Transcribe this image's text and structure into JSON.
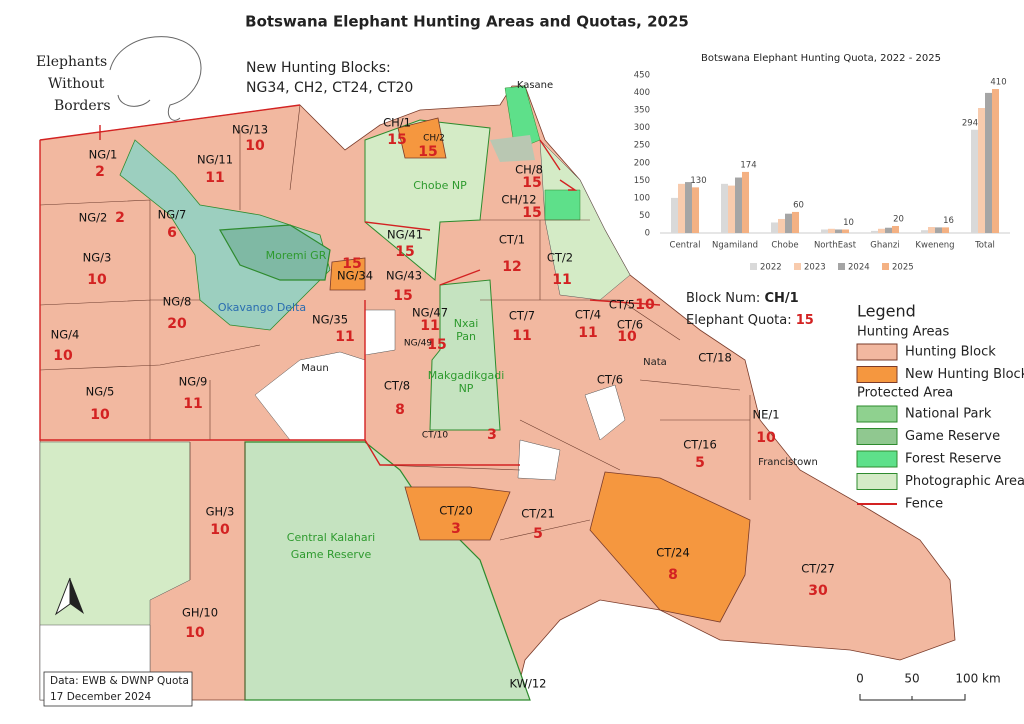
{
  "title": "Botswana Elephant Hunting Areas and Quotas, 2025",
  "logo": [
    "Elephants",
    "Without",
    "Borders"
  ],
  "new_blocks": {
    "heading": "New Hunting Blocks:",
    "list": "NG34, CH2, CT24, CT20"
  },
  "blocks": [
    {
      "name": "NG/13",
      "quota": 10
    },
    {
      "name": "NG/1",
      "quota": 2
    },
    {
      "name": "NG/11",
      "quota": 11
    },
    {
      "name": "CH/1",
      "quota": 15
    },
    {
      "name": "CH/2",
      "quota": 15
    },
    {
      "name": "CH/8",
      "quota": 15
    },
    {
      "name": "CH/12",
      "quota": 15
    },
    {
      "name": "NG/2",
      "quota": 2
    },
    {
      "name": "NG/7",
      "quota": 6
    },
    {
      "name": "NG/3",
      "quota": 10
    },
    {
      "name": "NG/41",
      "quota": 15
    },
    {
      "name": "CT/1",
      "quota": 12
    },
    {
      "name": "CT/2",
      "quota": 11
    },
    {
      "name": "NG/34",
      "quota": 15
    },
    {
      "name": "NG/43",
      "quota": 15
    },
    {
      "name": "NG/8",
      "quota": 20
    },
    {
      "name": "CT/5",
      "quota": 10
    },
    {
      "name": "CT/4",
      "quota": 11
    },
    {
      "name": "CT/7",
      "quota": 11
    },
    {
      "name": "NG/47",
      "quota": 11
    },
    {
      "name": "NG/35",
      "quota": 11
    },
    {
      "name": "CT/6",
      "quota": 10
    },
    {
      "name": "NG/4",
      "quota": 10
    },
    {
      "name": "NG/49",
      "quota": 15
    },
    {
      "name": "CT/18"
    },
    {
      "name": "CT/6"
    },
    {
      "name": "NG/5",
      "quota": 10
    },
    {
      "name": "NG/9",
      "quota": 11
    },
    {
      "name": "CT/8",
      "quota": 8
    },
    {
      "name": "NE/1",
      "quota": 10
    },
    {
      "name": "CT/10",
      "quota": 3
    },
    {
      "name": "CT/16",
      "quota": 5
    },
    {
      "name": "GH/3",
      "quota": 10
    },
    {
      "name": "CT/20",
      "quota": 3
    },
    {
      "name": "CT/21",
      "quota": 5
    },
    {
      "name": "CT/24",
      "quota": 8
    },
    {
      "name": "CT/27",
      "quota": 30
    },
    {
      "name": "GH/10",
      "quota": 10
    },
    {
      "name": "KW/12"
    }
  ],
  "places": [
    "Kasane",
    "Maun",
    "Nata",
    "Francistown"
  ],
  "protected_labels": [
    "Chobe NP",
    "Moremi GR",
    "Okavango Delta",
    "Nxai",
    "Pan",
    "Makgadikgadi",
    "NP",
    "Central Kalahari",
    "Game Reserve"
  ],
  "info": {
    "block_label": "Block Num:",
    "block": "CH/1",
    "quota_label": "Elephant Quota:",
    "quota": 15
  },
  "legend": {
    "title": "Legend",
    "groups": [
      {
        "heading": "Hunting Areas",
        "items": [
          {
            "label": "Hunting Block",
            "color": "#f2b8a0"
          },
          {
            "label": "New Hunting Block",
            "color": "#f5973f"
          }
        ]
      },
      {
        "heading": "Protected Area",
        "items": [
          {
            "label": "National Park",
            "color": "#8fd18f"
          },
          {
            "label": "Game Reserve",
            "color": "#90c890"
          },
          {
            "label": "Forest Reserve",
            "color": "#5ee08a"
          },
          {
            "label": "Photographic Areas",
            "color": "#d4ebc6"
          },
          {
            "label": "Fence",
            "color": "#d32222",
            "line": true
          }
        ]
      }
    ]
  },
  "source": [
    "Data: EWB & DWNP Quota",
    "17 December 2024"
  ],
  "scale_labels": [
    "0",
    "50",
    "100 km"
  ],
  "chart_data": {
    "type": "bar",
    "title": "Botswana Elephant Hunting Quota, 2022 - 2025",
    "categories": [
      "Central",
      "Ngamiland",
      "Chobe",
      "NorthEast",
      "Ghanzi",
      "Kweneng",
      "Total"
    ],
    "series": [
      {
        "name": "2022",
        "color": "#d9d9d9",
        "values": [
          100,
          140,
          30,
          10,
          6,
          8,
          294
        ],
        "value_labels": [
          null,
          null,
          null,
          null,
          null,
          null,
          "294"
        ]
      },
      {
        "name": "2023",
        "color": "#f8cbad",
        "values": [
          140,
          135,
          40,
          12,
          12,
          17,
          356
        ]
      },
      {
        "name": "2024",
        "color": "#a5a5a5",
        "values": [
          145,
          158,
          55,
          10,
          15,
          16,
          399
        ]
      },
      {
        "name": "2025",
        "color": "#f4b183",
        "values": [
          130,
          174,
          60,
          10,
          20,
          16,
          410
        ],
        "show_values": true
      }
    ],
    "ylim": [
      0,
      450
    ],
    "yticks": [
      0,
      50,
      100,
      150,
      200,
      250,
      300,
      350,
      400,
      450
    ],
    "grid": false
  }
}
